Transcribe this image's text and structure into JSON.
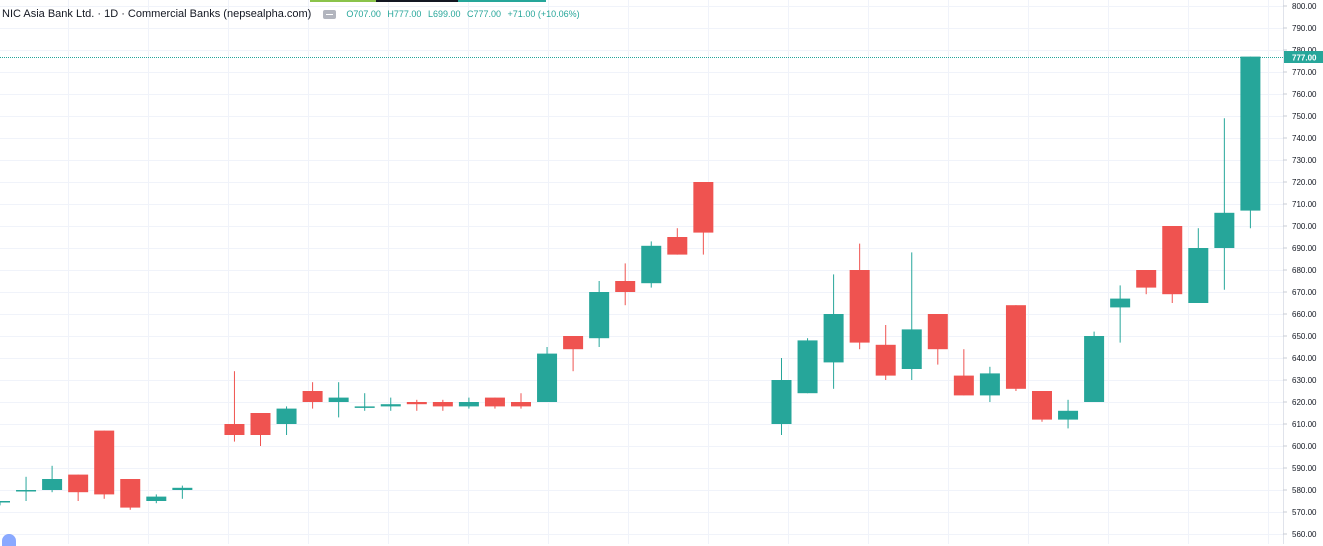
{
  "legend": {
    "symbol": "NIC Asia Bank Ltd. · 1D · Commercial Banks (nepsealpha.com)",
    "open": "O707.00",
    "high": "H777.00",
    "low": "L699.00",
    "close": "C777.00",
    "change": "+71.00 (+10.06%)"
  },
  "price_axis": {
    "labels": [
      "800.00",
      "790.00",
      "780.00",
      "770.00",
      "760.00",
      "750.00",
      "740.00",
      "730.00",
      "720.00",
      "710.00",
      "700.00",
      "690.00",
      "680.00",
      "670.00",
      "660.00",
      "650.00",
      "640.00",
      "630.00",
      "620.00",
      "610.00",
      "600.00",
      "590.00",
      "580.00",
      "570.00",
      "560.00"
    ],
    "last_price_label": "777.00"
  },
  "colors": {
    "up": "#26a69a",
    "down": "#ef5350",
    "grid": "#f0f3fa",
    "axis_text": "#131722",
    "last_price_line": "#26a69a",
    "background": "#ffffff"
  },
  "icons": {
    "visibility": "eye-icon",
    "logo": "tradingview-logo-icon"
  },
  "chart_data": {
    "type": "candlestick",
    "title": "NIC Asia Bank Ltd. · 1D · Commercial Banks (nepsealpha.com)",
    "ylim": [
      560,
      800
    ],
    "grid": true,
    "last_price": 777.0,
    "candles": [
      {
        "o": 575,
        "h": 575,
        "l": 573,
        "c": 575
      },
      {
        "o": 580,
        "h": 586,
        "l": 575,
        "c": 580
      },
      {
        "o": 580,
        "h": 591,
        "l": 579,
        "c": 585
      },
      {
        "o": 587,
        "h": 587,
        "l": 575,
        "c": 579
      },
      {
        "o": 607,
        "h": 607,
        "l": 576,
        "c": 578
      },
      {
        "o": 585,
        "h": 585,
        "l": 571,
        "c": 572
      },
      {
        "o": 575,
        "h": 578,
        "l": 574,
        "c": 577
      },
      {
        "o": 580,
        "h": 582,
        "l": 576,
        "c": 581
      },
      null,
      {
        "o": 610,
        "h": 634,
        "l": 602,
        "c": 605
      },
      {
        "o": 615,
        "h": 615,
        "l": 600,
        "c": 605
      },
      {
        "o": 610,
        "h": 618,
        "l": 605,
        "c": 617
      },
      {
        "o": 625,
        "h": 629,
        "l": 617,
        "c": 620
      },
      {
        "o": 620,
        "h": 629,
        "l": 613,
        "c": 622
      },
      {
        "o": 618,
        "h": 624,
        "l": 616,
        "c": 618
      },
      {
        "o": 618,
        "h": 622,
        "l": 616,
        "c": 619
      },
      {
        "o": 620,
        "h": 621,
        "l": 616,
        "c": 619
      },
      {
        "o": 620,
        "h": 621,
        "l": 616,
        "c": 618
      },
      {
        "o": 618,
        "h": 622,
        "l": 617,
        "c": 620
      },
      {
        "o": 622,
        "h": 622,
        "l": 617,
        "c": 618
      },
      {
        "o": 620,
        "h": 624,
        "l": 617,
        "c": 618
      },
      {
        "o": 620,
        "h": 645,
        "l": 620,
        "c": 642
      },
      {
        "o": 650,
        "h": 650,
        "l": 634,
        "c": 644
      },
      {
        "o": 649,
        "h": 675,
        "l": 645,
        "c": 670
      },
      {
        "o": 675,
        "h": 683,
        "l": 664,
        "c": 670
      },
      {
        "o": 674,
        "h": 693,
        "l": 672,
        "c": 691
      },
      {
        "o": 695,
        "h": 699,
        "l": 687,
        "c": 687
      },
      {
        "o": 720,
        "h": 720,
        "l": 687,
        "c": 697
      },
      null,
      null,
      {
        "o": 610,
        "h": 640,
        "l": 605,
        "c": 630
      },
      {
        "o": 624,
        "h": 649,
        "l": 624,
        "c": 648
      },
      {
        "o": 638,
        "h": 678,
        "l": 626,
        "c": 660
      },
      {
        "o": 680,
        "h": 692,
        "l": 644,
        "c": 647
      },
      {
        "o": 646,
        "h": 655,
        "l": 630,
        "c": 632
      },
      {
        "o": 635,
        "h": 688,
        "l": 630,
        "c": 653
      },
      {
        "o": 660,
        "h": 660,
        "l": 637,
        "c": 644
      },
      {
        "o": 632,
        "h": 644,
        "l": 623,
        "c": 623
      },
      {
        "o": 623,
        "h": 636,
        "l": 620,
        "c": 633
      },
      {
        "o": 664,
        "h": 664,
        "l": 625,
        "c": 626
      },
      {
        "o": 625,
        "h": 625,
        "l": 611,
        "c": 612
      },
      {
        "o": 612,
        "h": 621,
        "l": 608,
        "c": 616
      },
      {
        "o": 620,
        "h": 652,
        "l": 620,
        "c": 650
      },
      {
        "o": 663,
        "h": 673,
        "l": 647,
        "c": 667
      },
      {
        "o": 680,
        "h": 680,
        "l": 669,
        "c": 672
      },
      {
        "o": 700,
        "h": 700,
        "l": 665,
        "c": 669
      },
      {
        "o": 665,
        "h": 699,
        "l": 665,
        "c": 690
      },
      {
        "o": 690,
        "h": 749,
        "l": 671,
        "c": 706
      },
      {
        "o": 707,
        "h": 777,
        "l": 699,
        "c": 777
      }
    ]
  }
}
